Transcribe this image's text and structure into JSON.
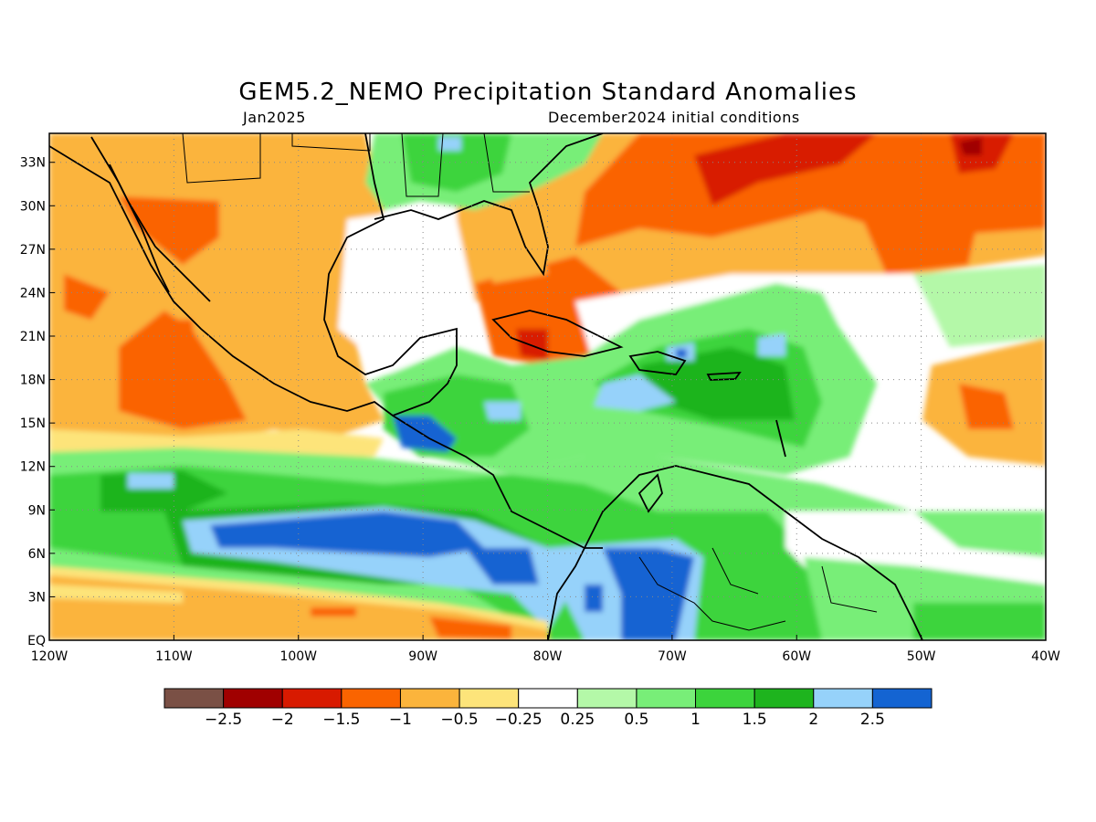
{
  "title": "GEM5.2_NEMO Precipitation Standard Anomalies",
  "subtitle_left": "Jan2025",
  "subtitle_right": "December2024 initial conditions",
  "map": {
    "lon_range": [
      -120,
      -40
    ],
    "lat_range": [
      0,
      35
    ],
    "lat_ticks": [
      {
        "value": 33,
        "label": "33N"
      },
      {
        "value": 30,
        "label": "30N"
      },
      {
        "value": 27,
        "label": "27N"
      },
      {
        "value": 24,
        "label": "24N"
      },
      {
        "value": 21,
        "label": "21N"
      },
      {
        "value": 18,
        "label": "18N"
      },
      {
        "value": 15,
        "label": "15N"
      },
      {
        "value": 12,
        "label": "12N"
      },
      {
        "value": 9,
        "label": "9N"
      },
      {
        "value": 6,
        "label": "6N"
      },
      {
        "value": 3,
        "label": "3N"
      },
      {
        "value": 0,
        "label": "EQ"
      }
    ],
    "lon_ticks": [
      {
        "value": -120,
        "label": "120W"
      },
      {
        "value": -110,
        "label": "110W"
      },
      {
        "value": -100,
        "label": "100W"
      },
      {
        "value": -90,
        "label": "90W"
      },
      {
        "value": -80,
        "label": "80W"
      },
      {
        "value": -70,
        "label": "70W"
      },
      {
        "value": -60,
        "label": "60W"
      },
      {
        "value": -50,
        "label": "50W"
      },
      {
        "value": -40,
        "label": "40W"
      }
    ],
    "gridlines": "dotted"
  },
  "colorbar": {
    "colors": [
      "#7a5045",
      "#a00000",
      "#d81a00",
      "#fa6400",
      "#fbb43c",
      "#fde47a",
      "#ffffff",
      "#b4f8a8",
      "#78ee78",
      "#3cd43c",
      "#1eb41e",
      "#96d2fa",
      "#1464d2"
    ],
    "labels": [
      "-2.5",
      "-2",
      "-1.5",
      "-1",
      "-0.5",
      "-0.25",
      "0.25",
      "0.5",
      "1",
      "1.5",
      "2",
      "2.5"
    ]
  }
}
